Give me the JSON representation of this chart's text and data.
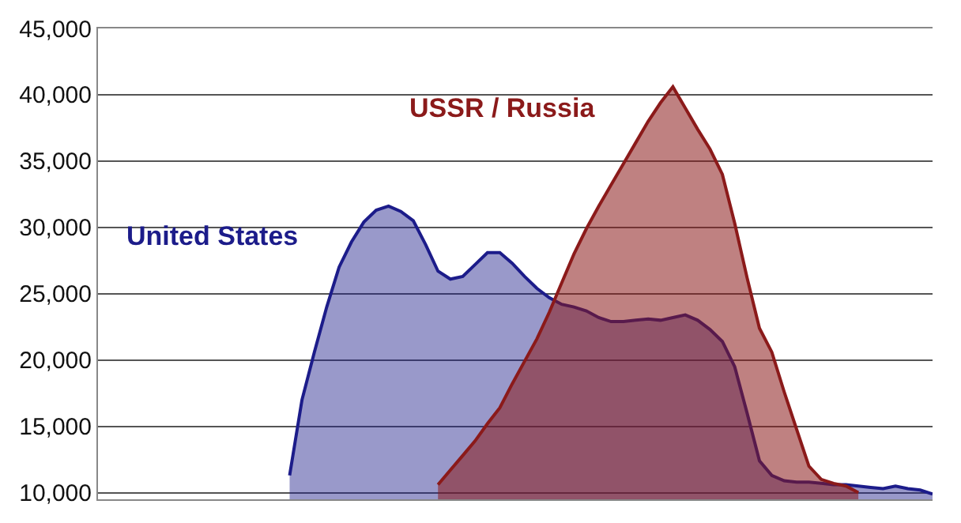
{
  "chart_data": {
    "type": "area",
    "categories": [
      null,
      null,
      null,
      null,
      null,
      null,
      null,
      null,
      null,
      null,
      null,
      null,
      null,
      null,
      null,
      null,
      null,
      null,
      null,
      null,
      null,
      null,
      null,
      null,
      null,
      null,
      null,
      null,
      null,
      null,
      null,
      null,
      null,
      null,
      null,
      null,
      null,
      null,
      null,
      null,
      null,
      null,
      null,
      null,
      null,
      null,
      null,
      null,
      null,
      null,
      null,
      null,
      null,
      null,
      null,
      null,
      null,
      null,
      null,
      null,
      null,
      null,
      null,
      null,
      null,
      null,
      null,
      null
    ],
    "series": [
      {
        "name": "United States",
        "color": "#1c1c8a",
        "values": [
          null,
          null,
          null,
          null,
          null,
          null,
          null,
          null,
          null,
          null,
          null,
          null,
          null,
          null,
          null,
          11300,
          17000,
          20600,
          24000,
          27000,
          28900,
          30400,
          31300,
          31600,
          31200,
          30500,
          28700,
          26700,
          26100,
          26300,
          27200,
          28100,
          28100,
          27300,
          26300,
          25400,
          24700,
          24200,
          24000,
          23700,
          23200,
          22900,
          22900,
          23000,
          23100,
          23000,
          23200,
          23400,
          23000,
          22300,
          21400,
          19500,
          16000,
          12400,
          11300,
          10900,
          10800,
          10800,
          10700,
          10600,
          10600,
          10500,
          10400,
          10300,
          10500,
          10300,
          10200,
          9900
        ]
      },
      {
        "name": "USSR / Russia",
        "color": "#8b1a1a",
        "values": [
          null,
          null,
          null,
          null,
          null,
          null,
          null,
          null,
          null,
          null,
          null,
          null,
          null,
          null,
          null,
          null,
          null,
          null,
          null,
          null,
          null,
          null,
          null,
          null,
          null,
          null,
          null,
          10600,
          11700,
          12800,
          13900,
          15200,
          16400,
          18200,
          19900,
          21600,
          23600,
          25800,
          28000,
          29900,
          31600,
          33200,
          34800,
          36400,
          38000,
          39400,
          40600,
          39000,
          37400,
          35900,
          34000,
          30300,
          26200,
          22400,
          20600,
          17600,
          14800,
          12000,
          11000,
          10700,
          10500,
          10000,
          null,
          null,
          null,
          null,
          null,
          null
        ]
      }
    ],
    "ylim": [
      9500,
      45000
    ],
    "yticks": [
      {
        "value": 10000,
        "label": "10,000"
      },
      {
        "value": 15000,
        "label": "15,000"
      },
      {
        "value": 20000,
        "label": "20,000"
      },
      {
        "value": 25000,
        "label": "25,000"
      },
      {
        "value": 30000,
        "label": "30,000"
      },
      {
        "value": 35000,
        "label": "35,000"
      },
      {
        "value": 40000,
        "label": "40,000"
      },
      {
        "value": 45000,
        "label": "45,000"
      }
    ],
    "grid": "y",
    "legend": false,
    "tick_labels": "y"
  }
}
